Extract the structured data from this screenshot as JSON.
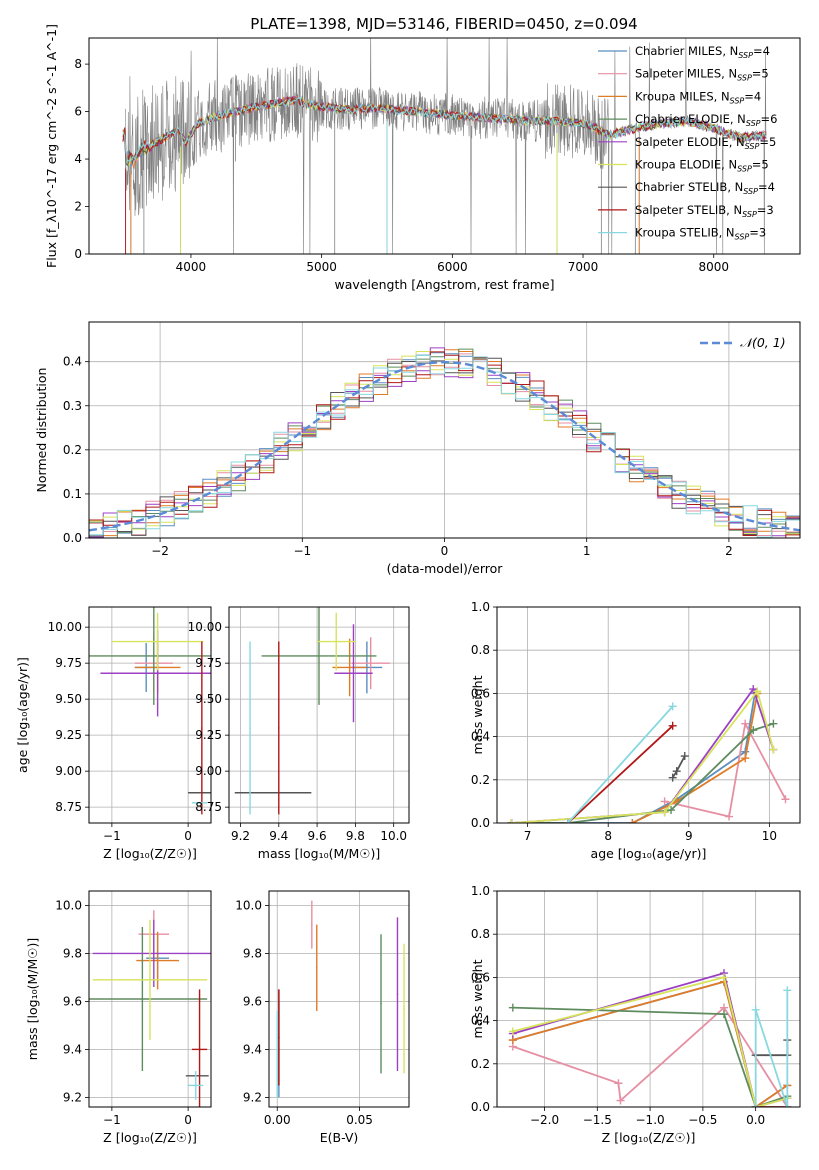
{
  "title": "PLATE=1398, MJD=53146, FIBERID=0450, z=0.094",
  "colors": {
    "Chabrier MILES": "#5b8dbf",
    "Salpeter MILES": "#e68fa3",
    "Kroupa MILES": "#e07b28",
    "Chabrier ELODIE": "#5e8c5e",
    "Salpeter ELODIE": "#9c40c4",
    "Kroupa ELODIE": "#d7e35a",
    "Chabrier STELIB": "#555555",
    "Salpeter STELIB": "#b01818",
    "Kroupa STELIB": "#88d8e0",
    "observed": "#808080",
    "grid": "#b0b0b0",
    "gaussian": "#5b8ad6"
  },
  "chart_data": [
    {
      "id": "spectrum",
      "type": "line",
      "xlabel": "wavelength [Angstrom, rest frame]",
      "ylabel": "Flux [f_λ10^-17 erg cm^-2 s^-1 A^-1]",
      "xlim": [
        3220,
        8660
      ],
      "ylim": [
        0,
        9.1
      ],
      "xticks": [
        4000,
        5000,
        6000,
        7000,
        8000
      ],
      "yticks": [
        0,
        2,
        4,
        6,
        8
      ],
      "grid": false,
      "legend_position": "right",
      "legend": [
        {
          "label": "Chabrier MILES, N",
          "sub": "SSP",
          "suffix": "=4"
        },
        {
          "label": "Salpeter MILES, N",
          "sub": "SSP",
          "suffix": "=5"
        },
        {
          "label": "Kroupa MILES, N",
          "sub": "SSP",
          "suffix": "=4"
        },
        {
          "label": "Chabrier ELODIE, N",
          "sub": "SSP",
          "suffix": "=6"
        },
        {
          "label": "Salpeter ELODIE, N",
          "sub": "SSP",
          "suffix": "=5"
        },
        {
          "label": "Kroupa ELODIE, N",
          "sub": "SSP",
          "suffix": "=5"
        },
        {
          "label": "Chabrier STELIB, N",
          "sub": "SSP",
          "suffix": "=4"
        },
        {
          "label": "Salpeter STELIB, N",
          "sub": "SSP",
          "suffix": "=3"
        },
        {
          "label": "Kroupa STELIB, N",
          "sub": "SSP",
          "suffix": "=3"
        }
      ],
      "continuum_knots": [
        [
          3500,
          4.1
        ],
        [
          3560,
          3.9
        ],
        [
          3620,
          4.4
        ],
        [
          3700,
          4.6
        ],
        [
          3800,
          4.9
        ],
        [
          3900,
          5.2
        ],
        [
          3960,
          4.7
        ],
        [
          4050,
          5.5
        ],
        [
          4200,
          5.8
        ],
        [
          4400,
          6.1
        ],
        [
          4600,
          6.3
        ],
        [
          4800,
          6.5
        ],
        [
          4900,
          6.3
        ],
        [
          5000,
          6.2
        ],
        [
          5200,
          6.1
        ],
        [
          5400,
          6.15
        ],
        [
          5600,
          6.05
        ],
        [
          5800,
          5.95
        ],
        [
          6000,
          5.85
        ],
        [
          6200,
          5.75
        ],
        [
          6400,
          5.7
        ],
        [
          6600,
          5.6
        ],
        [
          6800,
          5.6
        ],
        [
          7000,
          5.5
        ],
        [
          7100,
          5.3
        ],
        [
          7200,
          5.0
        ],
        [
          7400,
          5.3
        ],
        [
          7600,
          5.5
        ],
        [
          7800,
          5.6
        ],
        [
          8000,
          5.3
        ],
        [
          8200,
          4.9
        ],
        [
          8400,
          5.0
        ]
      ]
    },
    {
      "id": "residuals",
      "type": "line",
      "xlabel": "(data-model)/error",
      "ylabel": "Normed distribution",
      "xlim": [
        -2.5,
        2.5
      ],
      "ylim": [
        0,
        0.49
      ],
      "xticks": [
        -2,
        -1,
        0,
        1,
        2
      ],
      "yticks": [
        0.0,
        0.1,
        0.2,
        0.3,
        0.4
      ],
      "grid": true,
      "legend_position": "top-right",
      "legend_label": "𝒩(0, 1)",
      "bin_width": 0.1
    },
    {
      "id": "age-vs-Z",
      "type": "scatter",
      "xlabel": "Z [log₁₀(Z/Z☉)]",
      "ylabel": "age  [log₁₀(age/yr)]",
      "xlim": [
        -1.3,
        0.3
      ],
      "ylim": [
        8.64,
        10.14
      ],
      "xticks": [
        -1,
        0
      ],
      "yticks": [
        8.75,
        9.0,
        9.25,
        9.5,
        9.75,
        10.0
      ],
      "grid": true,
      "points": [
        {
          "s": "Chabrier MILES",
          "x": -0.55,
          "y": 9.72,
          "xe": 0.15,
          "ye": 0.17
        },
        {
          "s": "Salpeter MILES",
          "x": -0.45,
          "y": 9.75,
          "xe": 0.25,
          "ye": 0.2
        },
        {
          "s": "Kroupa MILES",
          "x": -0.4,
          "y": 9.72,
          "xe": 0.3,
          "ye": 0.18
        },
        {
          "s": "Chabrier ELODIE",
          "x": -0.45,
          "y": 9.8,
          "xe": 0.85,
          "ye": 0.34
        },
        {
          "s": "Salpeter ELODIE",
          "x": -0.4,
          "y": 9.68,
          "xe": 0.75,
          "ye": 0.3
        },
        {
          "s": "Kroupa ELODIE",
          "x": -0.4,
          "y": 9.9,
          "xe": 0.6,
          "ye": 0.2
        },
        {
          "s": "Chabrier STELIB",
          "x": 0.15,
          "y": 8.85,
          "xe": 0.15,
          "ye": 0.0
        },
        {
          "s": "Salpeter STELIB",
          "x": 0.18,
          "y": 9.3,
          "xe": 0.0,
          "ye": 0.6
        },
        {
          "s": "Kroupa STELIB",
          "x": 0.15,
          "y": 8.78,
          "xe": 0.1,
          "ye": 0.0
        }
      ]
    },
    {
      "id": "age-vs-mass",
      "type": "scatter",
      "xlabel": "mass [log₁₀(M/M☉)]",
      "ylabel": "",
      "xlim": [
        9.14,
        10.08
      ],
      "ylim": [
        8.64,
        10.14
      ],
      "xticks": [
        9.2,
        9.4,
        9.6,
        9.8,
        10.0
      ],
      "yticks": [
        8.75,
        9.0,
        9.25,
        9.5,
        9.75,
        10.0
      ],
      "grid": true,
      "points": [
        {
          "s": "Chabrier MILES",
          "x": 9.86,
          "y": 9.72,
          "xe": 0.08,
          "ye": 0.18
        },
        {
          "s": "Salpeter MILES",
          "x": 9.88,
          "y": 9.75,
          "xe": 0.1,
          "ye": 0.18
        },
        {
          "s": "Kroupa MILES",
          "x": 9.77,
          "y": 9.72,
          "xe": 0.09,
          "ye": 0.2
        },
        {
          "s": "Chabrier ELODIE",
          "x": 9.61,
          "y": 9.8,
          "xe": 0.3,
          "ye": 0.34
        },
        {
          "s": "Salpeter ELODIE",
          "x": 9.79,
          "y": 9.68,
          "xe": 0.1,
          "ye": 0.34
        },
        {
          "s": "Kroupa ELODIE",
          "x": 9.7,
          "y": 9.9,
          "xe": 0.1,
          "ye": 0.2
        },
        {
          "s": "Chabrier STELIB",
          "x": 9.37,
          "y": 8.85,
          "xe": 0.2,
          "ye": 0.0
        },
        {
          "s": "Salpeter STELIB",
          "x": 9.4,
          "y": 9.3,
          "xe": 0.0,
          "ye": 0.6
        },
        {
          "s": "Kroupa STELIB",
          "x": 9.25,
          "y": 9.3,
          "xe": 0.0,
          "ye": 0.6
        }
      ]
    },
    {
      "id": "weight-vs-age",
      "type": "line",
      "xlabel": "age  [log₁₀(age/yr)]",
      "ylabel": "mass weight",
      "xlim": [
        6.62,
        10.38
      ],
      "ylim": [
        0,
        1.0
      ],
      "xticks": [
        7,
        8,
        9,
        10
      ],
      "yticks": [
        0.0,
        0.2,
        0.4,
        0.6,
        0.8,
        1.0
      ],
      "grid": true,
      "series": [
        {
          "s": "Chabrier MILES",
          "x": [
            6.8,
            8.3,
            8.85,
            9.7,
            9.82
          ],
          "y": [
            0.0,
            0.0,
            0.11,
            0.33,
            0.6
          ]
        },
        {
          "s": "Salpeter MILES",
          "x": [
            8.7,
            9.5,
            9.7,
            10.2
          ],
          "y": [
            0.1,
            0.03,
            0.46,
            0.11
          ]
        },
        {
          "s": "Kroupa MILES",
          "x": [
            8.3,
            8.85,
            9.7,
            9.85
          ],
          "y": [
            0.0,
            0.1,
            0.3,
            0.6
          ]
        },
        {
          "s": "Chabrier ELODIE",
          "x": [
            6.8,
            7.5,
            8.78,
            9.8,
            10.05
          ],
          "y": [
            0.0,
            0.0,
            0.06,
            0.43,
            0.46
          ]
        },
        {
          "s": "Salpeter ELODIE",
          "x": [
            6.8,
            8.7,
            9.8,
            10.05
          ],
          "y": [
            0.0,
            0.05,
            0.62,
            0.34
          ]
        },
        {
          "s": "Kroupa ELODIE",
          "x": [
            6.8,
            8.7,
            9.85,
            10.05
          ],
          "y": [
            0.0,
            0.05,
            0.61,
            0.34
          ]
        },
        {
          "s": "Chabrier STELIB",
          "x": [
            8.8,
            8.85,
            8.95
          ],
          "y": [
            0.21,
            0.24,
            0.31
          ]
        },
        {
          "s": "Salpeter STELIB",
          "x": [
            7.5,
            8.8
          ],
          "y": [
            0.0,
            0.45
          ]
        },
        {
          "s": "Kroupa STELIB",
          "x": [
            7.5,
            8.8
          ],
          "y": [
            0.0,
            0.54
          ]
        }
      ]
    },
    {
      "id": "mass-vs-Z",
      "type": "scatter",
      "xlabel": "Z [log₁₀(Z/Z☉)]",
      "ylabel": "mass [log₁₀(M/M☉)]",
      "xlim": [
        -1.3,
        0.3
      ],
      "ylim": [
        9.16,
        10.06
      ],
      "xticks": [
        -1,
        0
      ],
      "yticks": [
        9.2,
        9.4,
        9.6,
        9.8,
        10.0
      ],
      "grid": true,
      "points": [
        {
          "s": "Chabrier MILES",
          "x": -0.4,
          "y": 9.78,
          "xe": 0.15,
          "ye": 0.1
        },
        {
          "s": "Salpeter MILES",
          "x": -0.45,
          "y": 9.88,
          "xe": 0.2,
          "ye": 0.1
        },
        {
          "s": "Kroupa MILES",
          "x": -0.4,
          "y": 9.77,
          "xe": 0.28,
          "ye": 0.12
        },
        {
          "s": "Chabrier ELODIE",
          "x": -0.6,
          "y": 9.61,
          "xe": 0.85,
          "ye": 0.3
        },
        {
          "s": "Salpeter ELODIE",
          "x": -0.45,
          "y": 9.8,
          "xe": 0.8,
          "ye": 0.14
        },
        {
          "s": "Kroupa ELODIE",
          "x": -0.5,
          "y": 9.69,
          "xe": 0.75,
          "ye": 0.25
        },
        {
          "s": "Chabrier STELIB",
          "x": 0.12,
          "y": 9.29,
          "xe": 0.15,
          "ye": 0.0
        },
        {
          "s": "Salpeter STELIB",
          "x": 0.15,
          "y": 9.4,
          "xe": 0.1,
          "ye": 0.25
        },
        {
          "s": "Kroupa STELIB",
          "x": 0.1,
          "y": 9.25,
          "xe": 0.1,
          "ye": 0.06
        }
      ]
    },
    {
      "id": "mass-vs-ebv",
      "type": "scatter",
      "xlabel": "E(B-V)",
      "ylabel": "",
      "xlim": [
        -0.005,
        0.08
      ],
      "ylim": [
        9.16,
        10.06
      ],
      "xticks": [
        0.0,
        0.05
      ],
      "yticks": [
        9.2,
        9.4,
        9.6,
        9.8,
        10.0
      ],
      "grid": true,
      "points": [
        {
          "s": "Chabrier MILES",
          "x": 0.001,
          "y": 9.4,
          "xe": 0.0,
          "ye": 0.2
        },
        {
          "s": "Salpeter MILES",
          "x": 0.021,
          "y": 9.92,
          "xe": 0.0,
          "ye": 0.1
        },
        {
          "s": "Kroupa MILES",
          "x": 0.024,
          "y": 9.74,
          "xe": 0.0,
          "ye": 0.18
        },
        {
          "s": "Chabrier ELODIE",
          "x": 0.063,
          "y": 9.59,
          "xe": 0.0,
          "ye": 0.29
        },
        {
          "s": "Salpeter ELODIE",
          "x": 0.073,
          "y": 9.63,
          "xe": 0.0,
          "ye": 0.32
        },
        {
          "s": "Kroupa ELODIE",
          "x": 0.077,
          "y": 9.57,
          "xe": 0.0,
          "ye": 0.27
        },
        {
          "s": "Chabrier STELIB",
          "x": 0.001,
          "y": 9.45,
          "xe": 0.0,
          "ye": 0.2
        },
        {
          "s": "Salpeter STELIB",
          "x": 0.001,
          "y": 9.45,
          "xe": 0.0,
          "ye": 0.2
        },
        {
          "s": "Kroupa STELIB",
          "x": 0.0,
          "y": 9.38,
          "xe": 0.0,
          "ye": 0.18
        }
      ]
    },
    {
      "id": "weight-vs-Z",
      "type": "line",
      "xlabel": "Z [log₁₀(Z/Z☉)]",
      "ylabel": "mass weight",
      "xlim": [
        -2.45,
        0.42
      ],
      "ylim": [
        0,
        1.0
      ],
      "xticks": [
        -2.0,
        -1.5,
        -1.0,
        -0.5,
        0.0
      ],
      "yticks": [
        0.0,
        0.2,
        0.4,
        0.6,
        0.8,
        1.0
      ],
      "grid": true,
      "series": [
        {
          "s": "Chabrier MILES",
          "x": [
            -2.3,
            -0.3,
            0.0,
            0.3
          ],
          "y": [
            0.31,
            0.58,
            0.0,
            0.1
          ]
        },
        {
          "s": "Salpeter MILES",
          "x": [
            -2.3,
            -1.3,
            -1.28,
            -0.3,
            0.3
          ],
          "y": [
            0.28,
            0.11,
            0.03,
            0.46,
            0.0
          ]
        },
        {
          "s": "Kroupa MILES",
          "x": [
            -2.3,
            -0.3,
            0.0,
            0.3
          ],
          "y": [
            0.31,
            0.58,
            0.0,
            0.1
          ]
        },
        {
          "s": "Chabrier ELODIE",
          "x": [
            -2.3,
            -0.3,
            0.0,
            0.3
          ],
          "y": [
            0.46,
            0.43,
            0.0,
            0.05
          ]
        },
        {
          "s": "Salpeter ELODIE",
          "x": [
            -2.3,
            -0.3,
            0.0,
            0.3
          ],
          "y": [
            0.34,
            0.62,
            0.0,
            0.04
          ]
        },
        {
          "s": "Kroupa ELODIE",
          "x": [
            -2.3,
            -0.3,
            0.0,
            0.3
          ],
          "y": [
            0.35,
            0.6,
            0.0,
            0.04
          ]
        },
        {
          "s": "Chabrier STELIB",
          "x": [
            0.0,
            0.3,
            0.3
          ],
          "y": [
            0.24,
            0.24,
            0.31
          ]
        },
        {
          "s": "Salpeter STELIB",
          "x": [
            0.0,
            0.3
          ],
          "y": [
            0.0,
            0.0
          ]
        },
        {
          "s": "Kroupa STELIB",
          "x": [
            0.0,
            0.0,
            0.3,
            0.3
          ],
          "y": [
            0.0,
            0.45,
            0.0,
            0.54
          ]
        }
      ]
    }
  ]
}
